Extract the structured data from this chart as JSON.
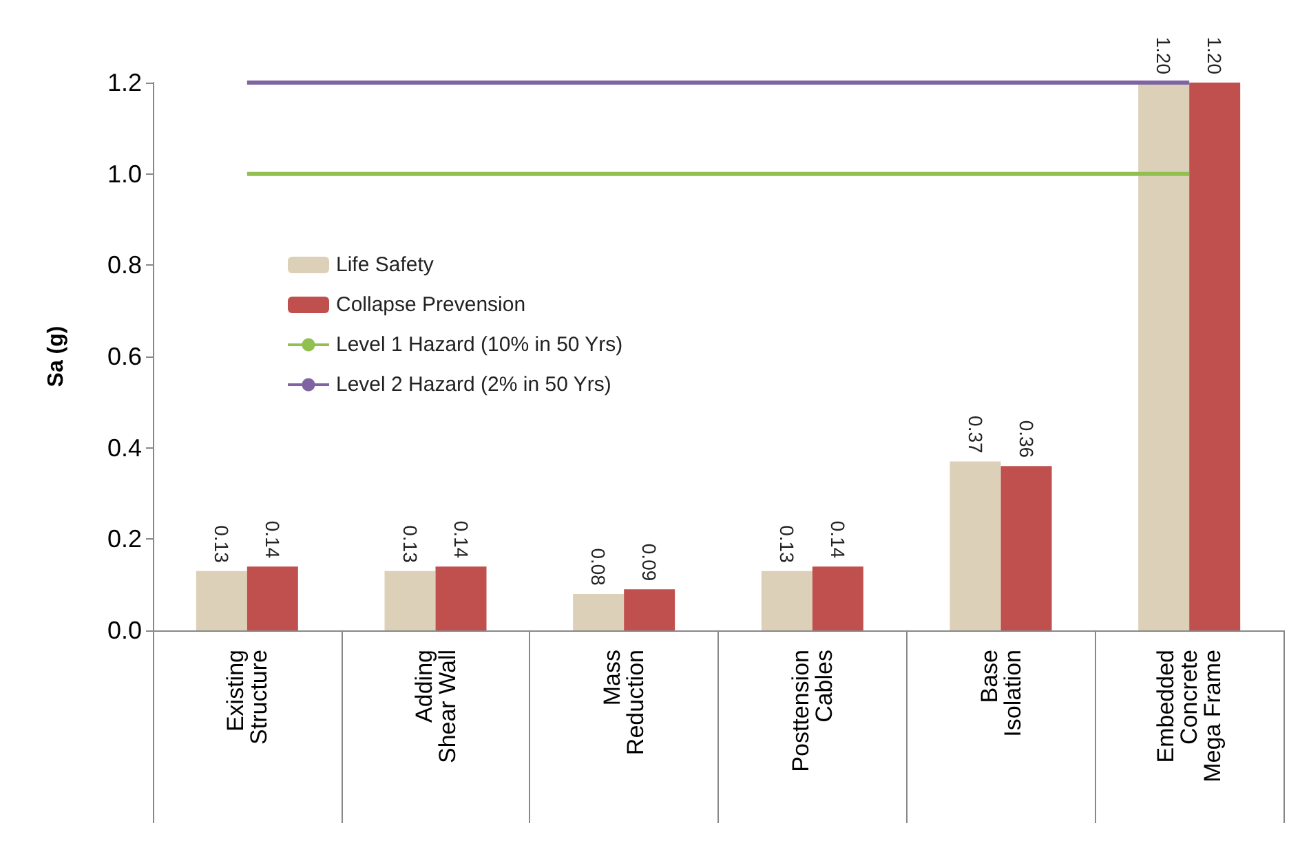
{
  "chart_data": {
    "type": "bar",
    "ylabel": "Sa (g)",
    "categories": [
      "Existing\nStructure",
      "Adding\nShear Wall",
      "Mass\nReduction",
      "Posttension\nCables",
      "Base\nIsolation",
      "Embedded\nConcrete\nMega Frame"
    ],
    "series": [
      {
        "name": "Life Safety",
        "color": "#ddd0b8",
        "values": [
          0.13,
          0.13,
          0.08,
          0.13,
          0.37,
          1.2
        ],
        "value_labels": [
          "0.13",
          "0.13",
          "0.08",
          "0.13",
          "0.37",
          "1.20"
        ]
      },
      {
        "name": "Collapse Prevension",
        "color": "#c0504d",
        "values": [
          0.14,
          0.14,
          0.09,
          0.14,
          0.36,
          1.2
        ],
        "value_labels": [
          "0.14",
          "0.14",
          "0.09",
          "0.14",
          "0.36",
          "1.20"
        ]
      },
      {
        "name": "Level 1 Hazard (10% in 50 Yrs)",
        "type": "line",
        "color": "#92c050",
        "values": [
          1,
          1,
          1,
          1,
          1,
          1
        ]
      },
      {
        "name": "Level 2 Hazard (2% in 50 Yrs)",
        "type": "line",
        "color": "#8064a2",
        "values": [
          1.2,
          1.2,
          1.2,
          1.2,
          1.2,
          1.2
        ]
      }
    ],
    "ylim": [
      0,
      1.2
    ],
    "yticks": [
      {
        "value": 0,
        "label": "0.0"
      },
      {
        "value": 0.2,
        "label": "0.2"
      },
      {
        "value": 0.4,
        "label": "0.4"
      },
      {
        "value": 0.6,
        "label": "0.6"
      },
      {
        "value": 0.8,
        "label": "0.8"
      },
      {
        "value": 1,
        "label": "1.0"
      },
      {
        "value": 1.2,
        "label": "1.2"
      }
    ],
    "grid": false,
    "legend": "left",
    "marker": "none"
  }
}
